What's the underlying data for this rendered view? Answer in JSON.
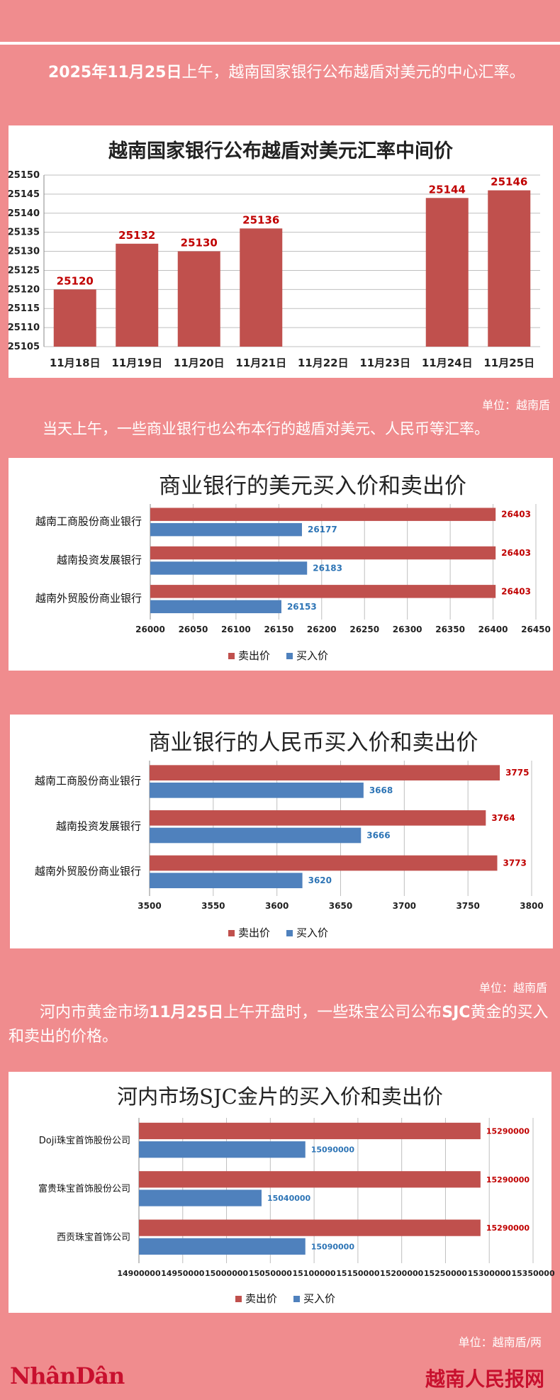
{
  "intro1": {
    "date": "2025年11月25日",
    "rest": "上午，越南国家银行公布越盾对美元的中心汇率。"
  },
  "unit1": "单位：越南盾",
  "intro2": "当天上午，一些商业银行也公布本行的越盾对美元、人民币等汇率。",
  "unit2": "单位：越南盾",
  "intro3": {
    "p1": "河内市黄金市场",
    "p2": "11月25日",
    "p3": "上午开盘时，一些珠宝公司公布",
    "p4": "SJC",
    "p5": "黄金的买入和卖出的价格。"
  },
  "unit3": "单位：越南盾/两",
  "footer": {
    "logo": "NhânDân",
    "site": "越南人民报网"
  },
  "colors": {
    "sell": "#c0504d",
    "buy": "#4f81bd",
    "sell_label": "#c00000",
    "buy_label": "#2e75b6"
  },
  "chart_data": [
    {
      "type": "bar",
      "title": "越南国家银行公布越盾对美元汇率中间价",
      "categories": [
        "11月18日",
        "11月19日",
        "11月20日",
        "11月21日",
        "11月22日",
        "11月23日",
        "11月24日",
        "11月25日"
      ],
      "values": [
        25120,
        25132,
        25130,
        25136,
        null,
        null,
        25144,
        25146
      ],
      "ylim": [
        25105,
        25150
      ],
      "yticks": [
        25105,
        25110,
        25115,
        25120,
        25125,
        25130,
        25135,
        25140,
        25145,
        25150
      ],
      "grid": true
    },
    {
      "type": "bar",
      "orientation": "horizontal",
      "title": "商业银行的美元买入价和卖出价",
      "categories": [
        "越南工商股份商业银行",
        "越南投资发展银行",
        "越南外贸股份商业银行"
      ],
      "series": [
        {
          "name": "卖出价",
          "values": [
            26403,
            26403,
            26403
          ]
        },
        {
          "name": "买入价",
          "values": [
            26177,
            26183,
            26153
          ]
        }
      ],
      "xlim": [
        26000,
        26450
      ],
      "xticks": [
        26000,
        26050,
        26100,
        26150,
        26200,
        26250,
        26300,
        26350,
        26400,
        26450
      ],
      "legend": "bottom",
      "grid": true
    },
    {
      "type": "bar",
      "orientation": "horizontal",
      "title": "商业银行的人民币买入价和卖出价",
      "categories": [
        "越南工商股份商业银行",
        "越南投资发展银行",
        "越南外贸股份商业银行"
      ],
      "series": [
        {
          "name": "卖出价",
          "values": [
            3775,
            3764,
            3773
          ]
        },
        {
          "name": "买入价",
          "values": [
            3668,
            3666,
            3620
          ]
        }
      ],
      "xlim": [
        3500,
        3800
      ],
      "xticks": [
        3500,
        3550,
        3600,
        3650,
        3700,
        3750,
        3800
      ],
      "legend": "bottom",
      "grid": true
    },
    {
      "type": "bar",
      "orientation": "horizontal",
      "title": "河内市场SJC金片的买入价和卖出价",
      "categories": [
        "Doji珠宝首饰股份公司",
        "富贵珠宝首饰股份公司",
        "西贡珠宝首饰公司"
      ],
      "series": [
        {
          "name": "卖出价",
          "values": [
            15290000,
            15290000,
            15290000
          ]
        },
        {
          "name": "买入价",
          "values": [
            15090000,
            15040000,
            15090000
          ]
        }
      ],
      "xlim": [
        14900000,
        15350000
      ],
      "xticks": [
        14900000,
        14950000,
        15000000,
        15050000,
        15100000,
        15150000,
        15200000,
        15250000,
        15300000,
        15350000
      ],
      "legend": "bottom",
      "grid": true
    }
  ]
}
